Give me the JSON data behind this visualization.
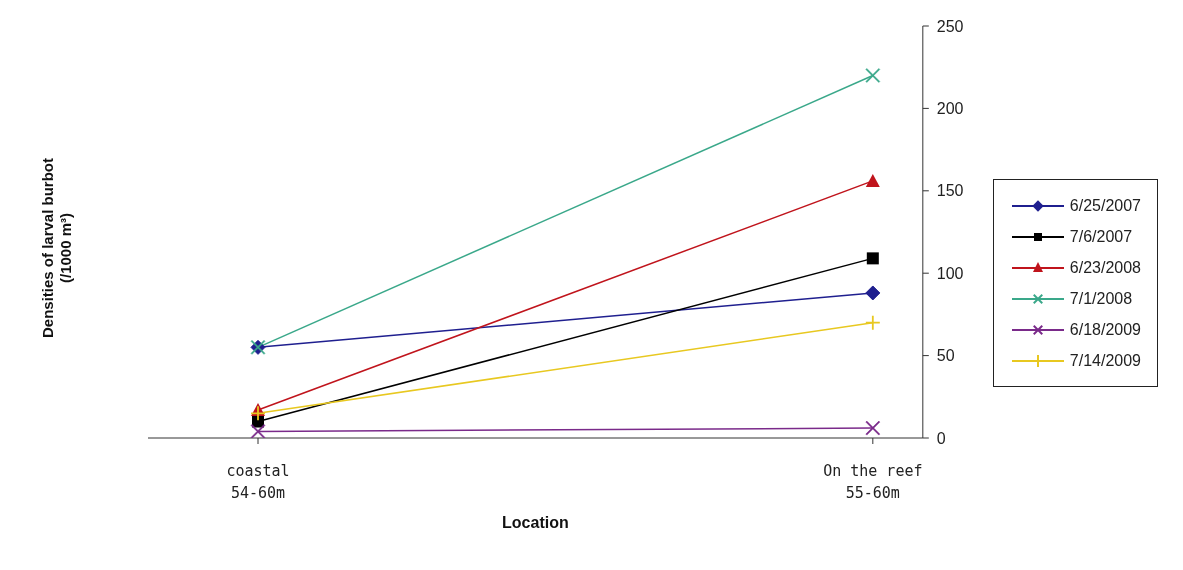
{
  "chart_data": {
    "type": "line",
    "xlabel": "Location",
    "ylabel": "Densities of larval burbot\n(/1000 m³)",
    "categories": [
      "coastal\n54-60m",
      "On the reef\n55-60m"
    ],
    "ylim": [
      0,
      250
    ],
    "yticks": [
      0,
      50,
      100,
      150,
      200,
      250
    ],
    "grid": false,
    "legend": "right",
    "series": [
      {
        "name": "6/25/2007",
        "color": "#1f1f8f",
        "marker": "diamond",
        "values": [
          55,
          88
        ]
      },
      {
        "name": "7/6/2007",
        "color": "#000000",
        "marker": "square",
        "values": [
          10,
          109
        ]
      },
      {
        "name": "6/23/2008",
        "color": "#c0141c",
        "marker": "triangle",
        "values": [
          17,
          156
        ]
      },
      {
        "name": "7/1/2008",
        "color": "#3aa88a",
        "marker": "cross",
        "values": [
          55,
          220
        ]
      },
      {
        "name": "6/18/2009",
        "color": "#7a2a8a",
        "marker": "cross",
        "values": [
          4,
          6
        ]
      },
      {
        "name": "7/14/2009",
        "color": "#e8c820",
        "marker": "plus",
        "values": [
          15,
          70
        ]
      }
    ]
  }
}
